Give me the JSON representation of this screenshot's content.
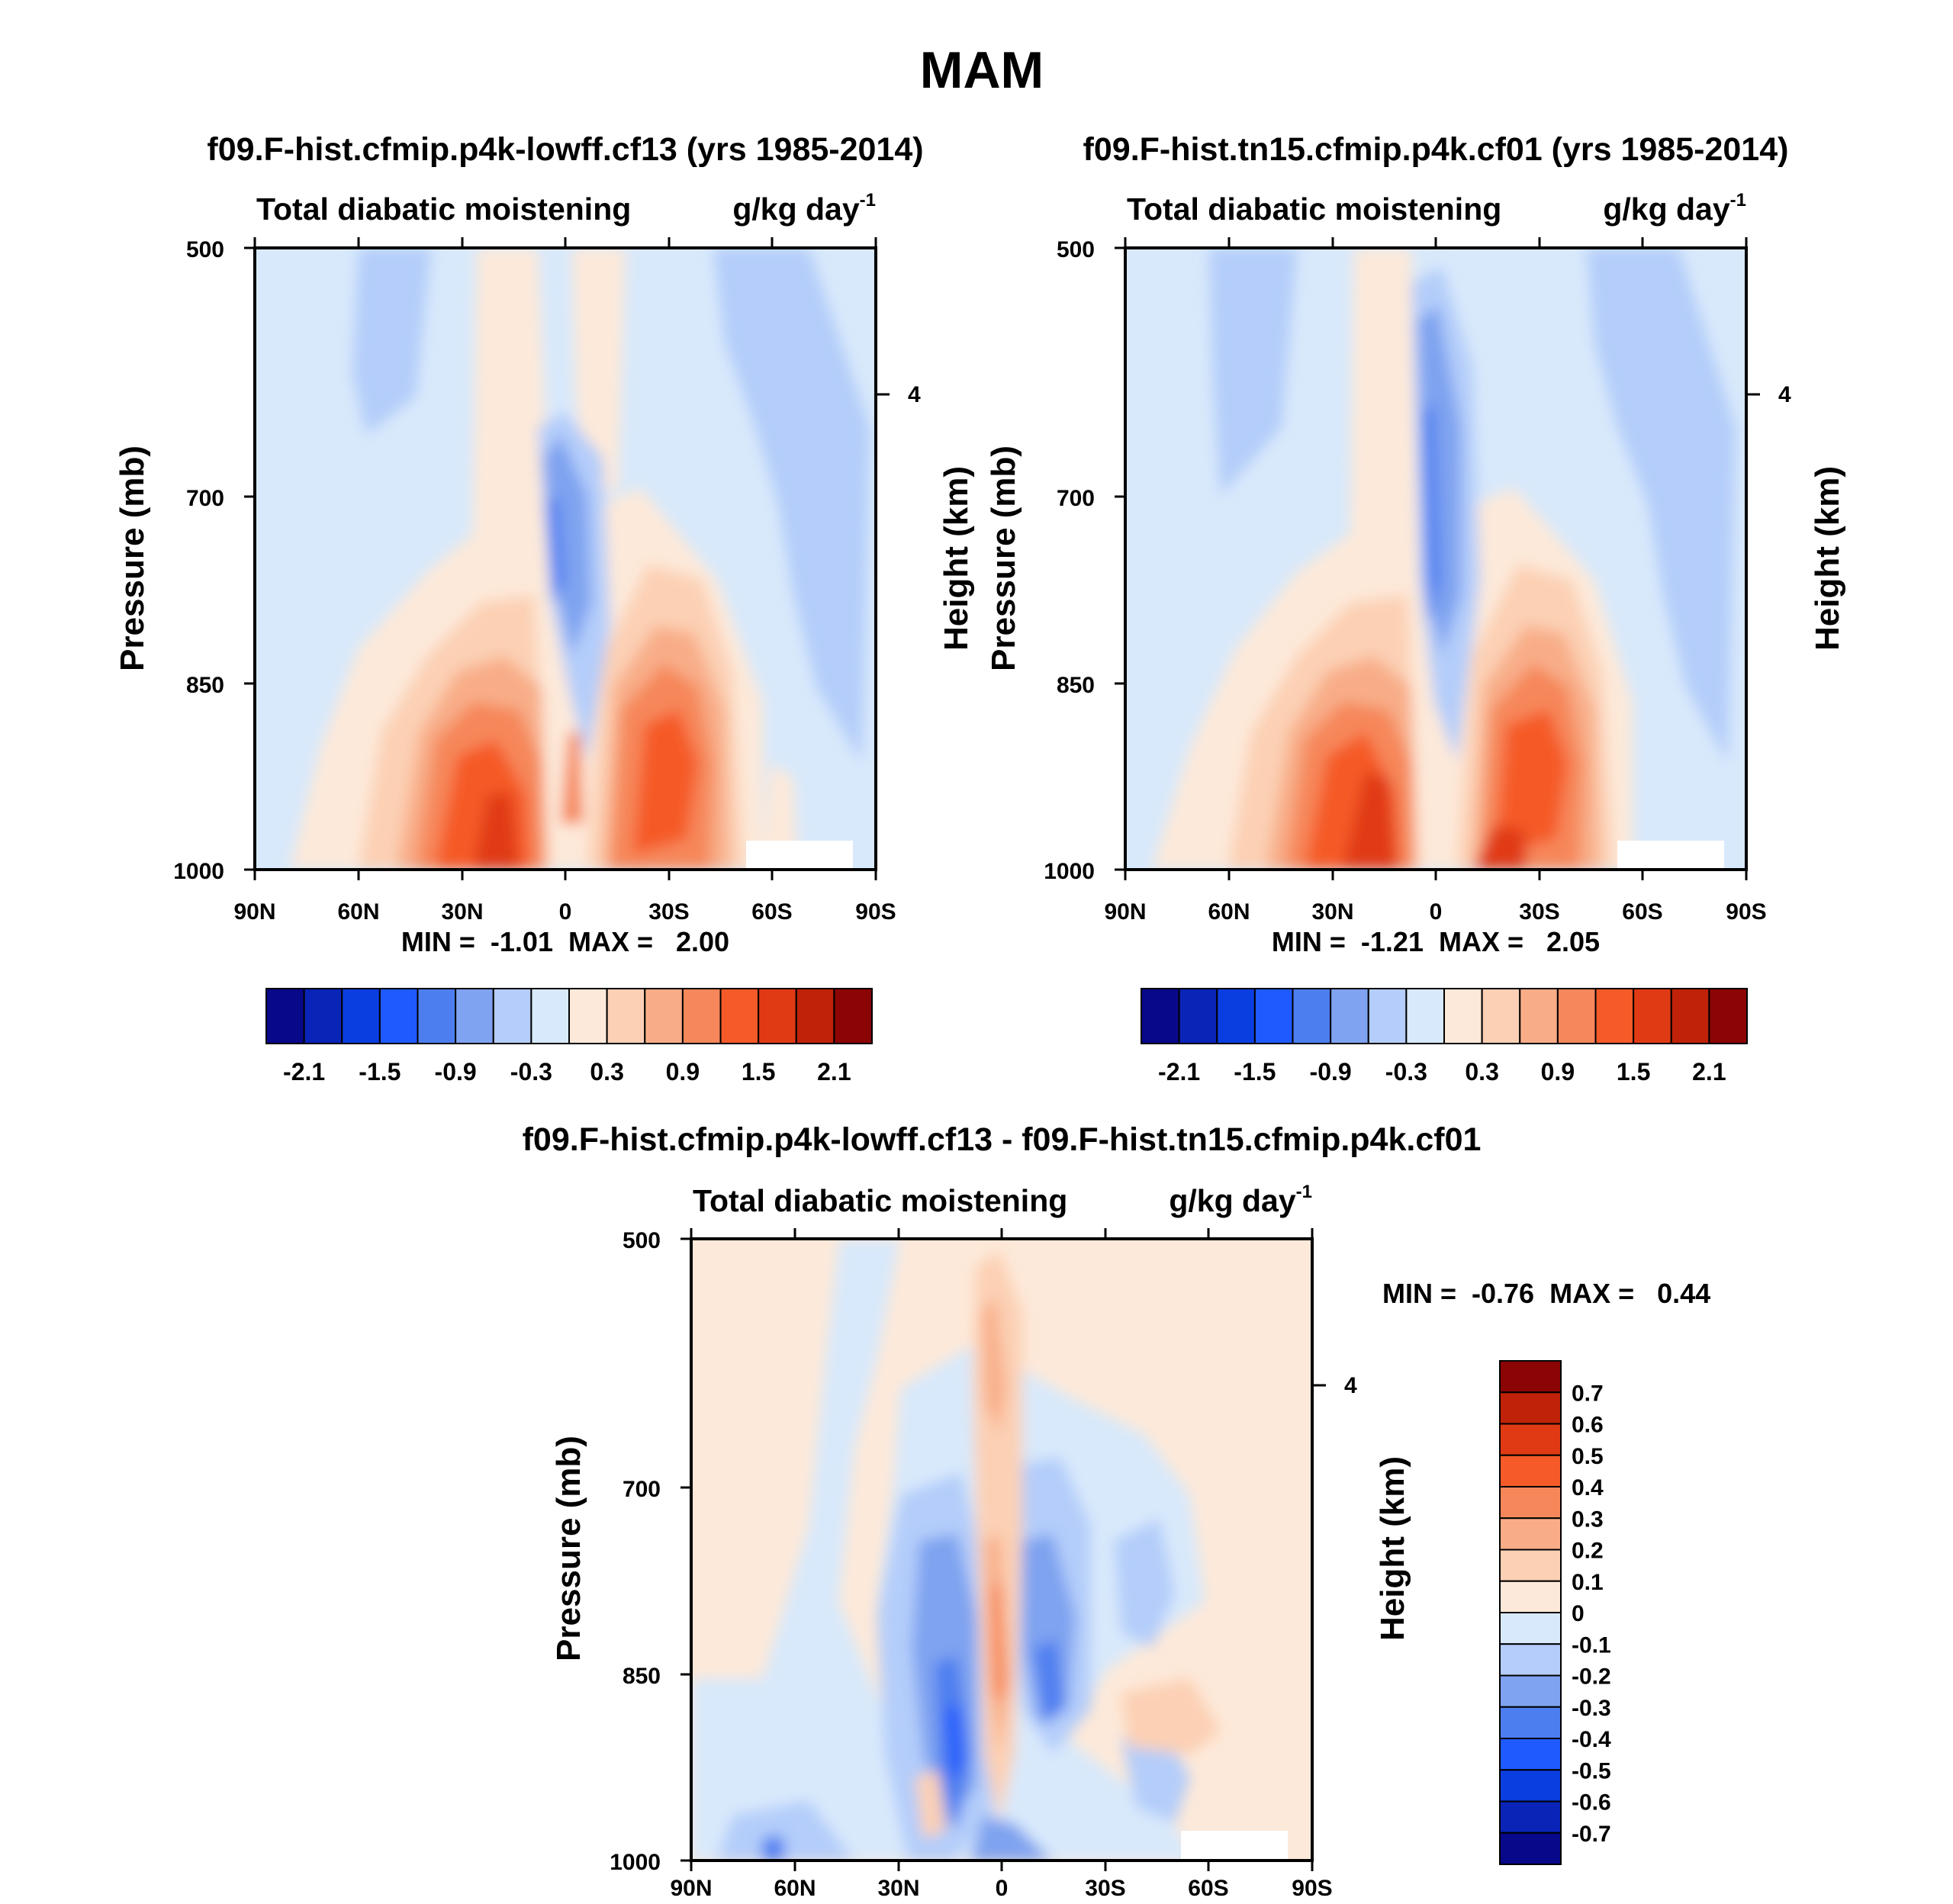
{
  "figure_title": "MAM",
  "panels": [
    {
      "case_title": "f09.F-hist.cfmip.p4k-lowff.cf13 (yrs 1985-2014)",
      "variable_label": "Total diabatic moistening",
      "units_label": "g/kg day",
      "units_exp": "-1",
      "min_max_text": "MIN =  -1.01  MAX =   2.00"
    },
    {
      "case_title": "f09.F-hist.tn15.cfmip.p4k.cf01 (yrs 1985-2014)",
      "variable_label": "Total diabatic moistening",
      "units_label": "g/kg day",
      "units_exp": "-1",
      "min_max_text": "MIN =  -1.21  MAX =   2.05"
    },
    {
      "case_title": "f09.F-hist.cfmip.p4k-lowff.cf13 - f09.F-hist.tn15.cfmip.p4k.cf01",
      "variable_label": "Total diabatic moistening",
      "units_label": "g/kg day",
      "units_exp": "-1",
      "min_max_text": "MIN =  -0.76  MAX =   0.44"
    }
  ],
  "y_axis_label": "Pressure (mb)",
  "right_axis_label": "Height (km)",
  "y_ticks": [
    "500",
    "700",
    "850",
    "1000"
  ],
  "right_ticks": [
    "4"
  ],
  "x_ticks": [
    "90N",
    "60N",
    "30N",
    "0",
    "30S",
    "60S",
    "90S"
  ],
  "colorbar_main": {
    "colors": [
      "#08088a",
      "#0a24b8",
      "#0b3ee0",
      "#1f5aff",
      "#4d7ef0",
      "#7fa3f0",
      "#b4cdfa",
      "#d8e9fb",
      "#fde9d9",
      "#fcd0b4",
      "#f8ad88",
      "#f6875a",
      "#f55a28",
      "#e03a14",
      "#bf2208",
      "#8b0505"
    ],
    "labels": [
      "-2.1",
      "-1.5",
      "-0.9",
      "-0.3",
      "0.3",
      "0.9",
      "1.5",
      "2.1"
    ]
  },
  "colorbar_diff": {
    "colors": [
      "#08088a",
      "#0a24b8",
      "#0b3ee0",
      "#1f5aff",
      "#4d7ef0",
      "#7fa3f0",
      "#b4cdfa",
      "#d8e9fb",
      "#fde9d9",
      "#fcd0b4",
      "#f8ad88",
      "#f6875a",
      "#f55a28",
      "#e03a14",
      "#bf2208",
      "#8b0505"
    ],
    "labels": [
      "0.7",
      "0.6",
      "0.5",
      "0.4",
      "0.3",
      "0.2",
      "0.1",
      "0",
      "-0.1",
      "-0.2",
      "-0.3",
      "-0.4",
      "-0.5",
      "-0.6",
      "-0.7"
    ]
  },
  "chart_data": [
    {
      "type": "heatmap",
      "title": "f09.F-hist.cfmip.p4k-lowff.cf13 (yrs 1985-2014)",
      "xlabel": "",
      "ylabel": "Pressure (mb)",
      "x_range": [
        -90,
        90
      ],
      "y_range": [
        500,
        1000
      ],
      "y_log_scale": true,
      "min": -1.01,
      "max": 2.0,
      "levels": [
        -2.1,
        -1.8,
        -1.5,
        -1.2,
        -0.9,
        -0.6,
        -0.3,
        0,
        0.3,
        0.6,
        0.9,
        1.2,
        1.5,
        1.8,
        2.1
      ],
      "features": [
        {
          "lat": -20,
          "p": 935,
          "value": 1.6
        },
        {
          "lat": 20,
          "p": 900,
          "value": 1.5
        },
        {
          "lat": -2,
          "p": 750,
          "value": -0.9
        },
        {
          "lat": 3,
          "p": 920,
          "value": 0.9
        }
      ]
    },
    {
      "type": "heatmap",
      "title": "f09.F-hist.tn15.cfmip.p4k.cf01 (yrs 1985-2014)",
      "xlabel": "",
      "ylabel": "Pressure (mb)",
      "x_range": [
        -90,
        90
      ],
      "y_range": [
        500,
        1000
      ],
      "y_log_scale": true,
      "min": -1.21,
      "max": 2.05,
      "levels": [
        -2.1,
        -1.8,
        -1.5,
        -1.2,
        -0.9,
        -0.6,
        -0.3,
        0,
        0.3,
        0.6,
        0.9,
        1.2,
        1.5,
        1.8,
        2.1
      ],
      "features": [
        {
          "lat": -15,
          "p": 930,
          "value": 1.7
        },
        {
          "lat": 22,
          "p": 910,
          "value": 1.5
        },
        {
          "lat": -5,
          "p": 720,
          "value": -1.1
        }
      ]
    },
    {
      "type": "heatmap",
      "title": "f09.F-hist.cfmip.p4k-lowff.cf13 - f09.F-hist.tn15.cfmip.p4k.cf01",
      "xlabel": "",
      "ylabel": "Pressure (mb)",
      "x_range": [
        -90,
        90
      ],
      "y_range": [
        500,
        1000
      ],
      "y_log_scale": true,
      "min": -0.76,
      "max": 0.44,
      "levels": [
        -0.7,
        -0.6,
        -0.5,
        -0.4,
        -0.3,
        -0.2,
        -0.1,
        0,
        0.1,
        0.2,
        0.3,
        0.4,
        0.5,
        0.6,
        0.7
      ],
      "features": [
        {
          "lat": 0,
          "p": 560,
          "value": 0.3
        },
        {
          "lat": 0,
          "p": 860,
          "value": 0.4
        },
        {
          "lat": -10,
          "p": 900,
          "value": -0.5
        },
        {
          "lat": 15,
          "p": 880,
          "value": -0.4
        }
      ]
    }
  ]
}
